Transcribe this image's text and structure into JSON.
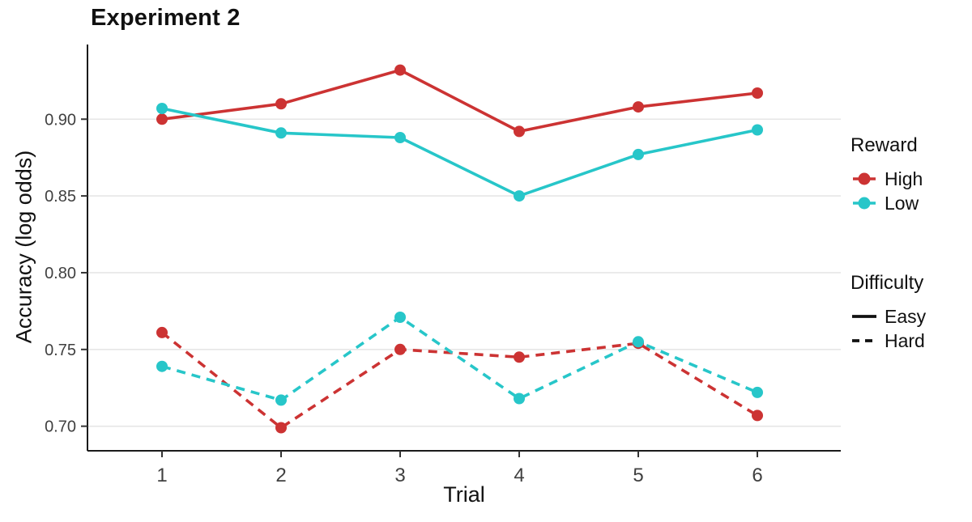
{
  "title": "Experiment 2",
  "chart_data": {
    "type": "line",
    "title": "Experiment 2",
    "xlabel": "Trial",
    "ylabel": "Accuracy (log odds)",
    "x": [
      1,
      2,
      3,
      4,
      5,
      6
    ],
    "x_tick_labels": [
      "1",
      "2",
      "3",
      "4",
      "5",
      "6"
    ],
    "y_ticks": [
      0.7,
      0.75,
      0.8,
      0.85,
      0.9
    ],
    "y_tick_labels": [
      "0.70",
      "0.75",
      "0.80",
      "0.85",
      "0.90"
    ],
    "ylim": [
      0.684,
      0.946
    ],
    "grid": "horizontal-major-only",
    "legend_position": "right",
    "series": [
      {
        "name": "High / Easy",
        "reward": "High",
        "difficulty": "Easy",
        "color": "#cc3333",
        "dash": "solid",
        "values": [
          0.9,
          0.91,
          0.932,
          0.892,
          0.908,
          0.917
        ]
      },
      {
        "name": "Low / Easy",
        "reward": "Low",
        "difficulty": "Easy",
        "color": "#27c6c9",
        "dash": "solid",
        "values": [
          0.907,
          0.891,
          0.888,
          0.85,
          0.877,
          0.893
        ]
      },
      {
        "name": "High / Hard",
        "reward": "High",
        "difficulty": "Hard",
        "color": "#cc3333",
        "dash": "dashed",
        "values": [
          0.761,
          0.699,
          0.75,
          0.745,
          0.754,
          0.707
        ]
      },
      {
        "name": "Low / Hard",
        "reward": "Low",
        "difficulty": "Hard",
        "color": "#27c6c9",
        "dash": "dashed",
        "values": [
          0.739,
          0.717,
          0.771,
          0.718,
          0.755,
          0.722
        ]
      }
    ],
    "legend": {
      "reward_title": "Reward",
      "reward_items": [
        {
          "label": "High",
          "color": "#cc3333"
        },
        {
          "label": "Low",
          "color": "#27c6c9"
        }
      ],
      "difficulty_title": "Difficulty",
      "difficulty_items": [
        {
          "label": "Easy",
          "dash": "solid"
        },
        {
          "label": "Hard",
          "dash": "dashed"
        }
      ]
    }
  },
  "colors": {
    "red": "#cc3333",
    "cyan": "#27c6c9",
    "gridline": "#e6e6e6",
    "axis_line": "#1a1a1a",
    "tick_text": "#404040",
    "background": "#ffffff"
  }
}
